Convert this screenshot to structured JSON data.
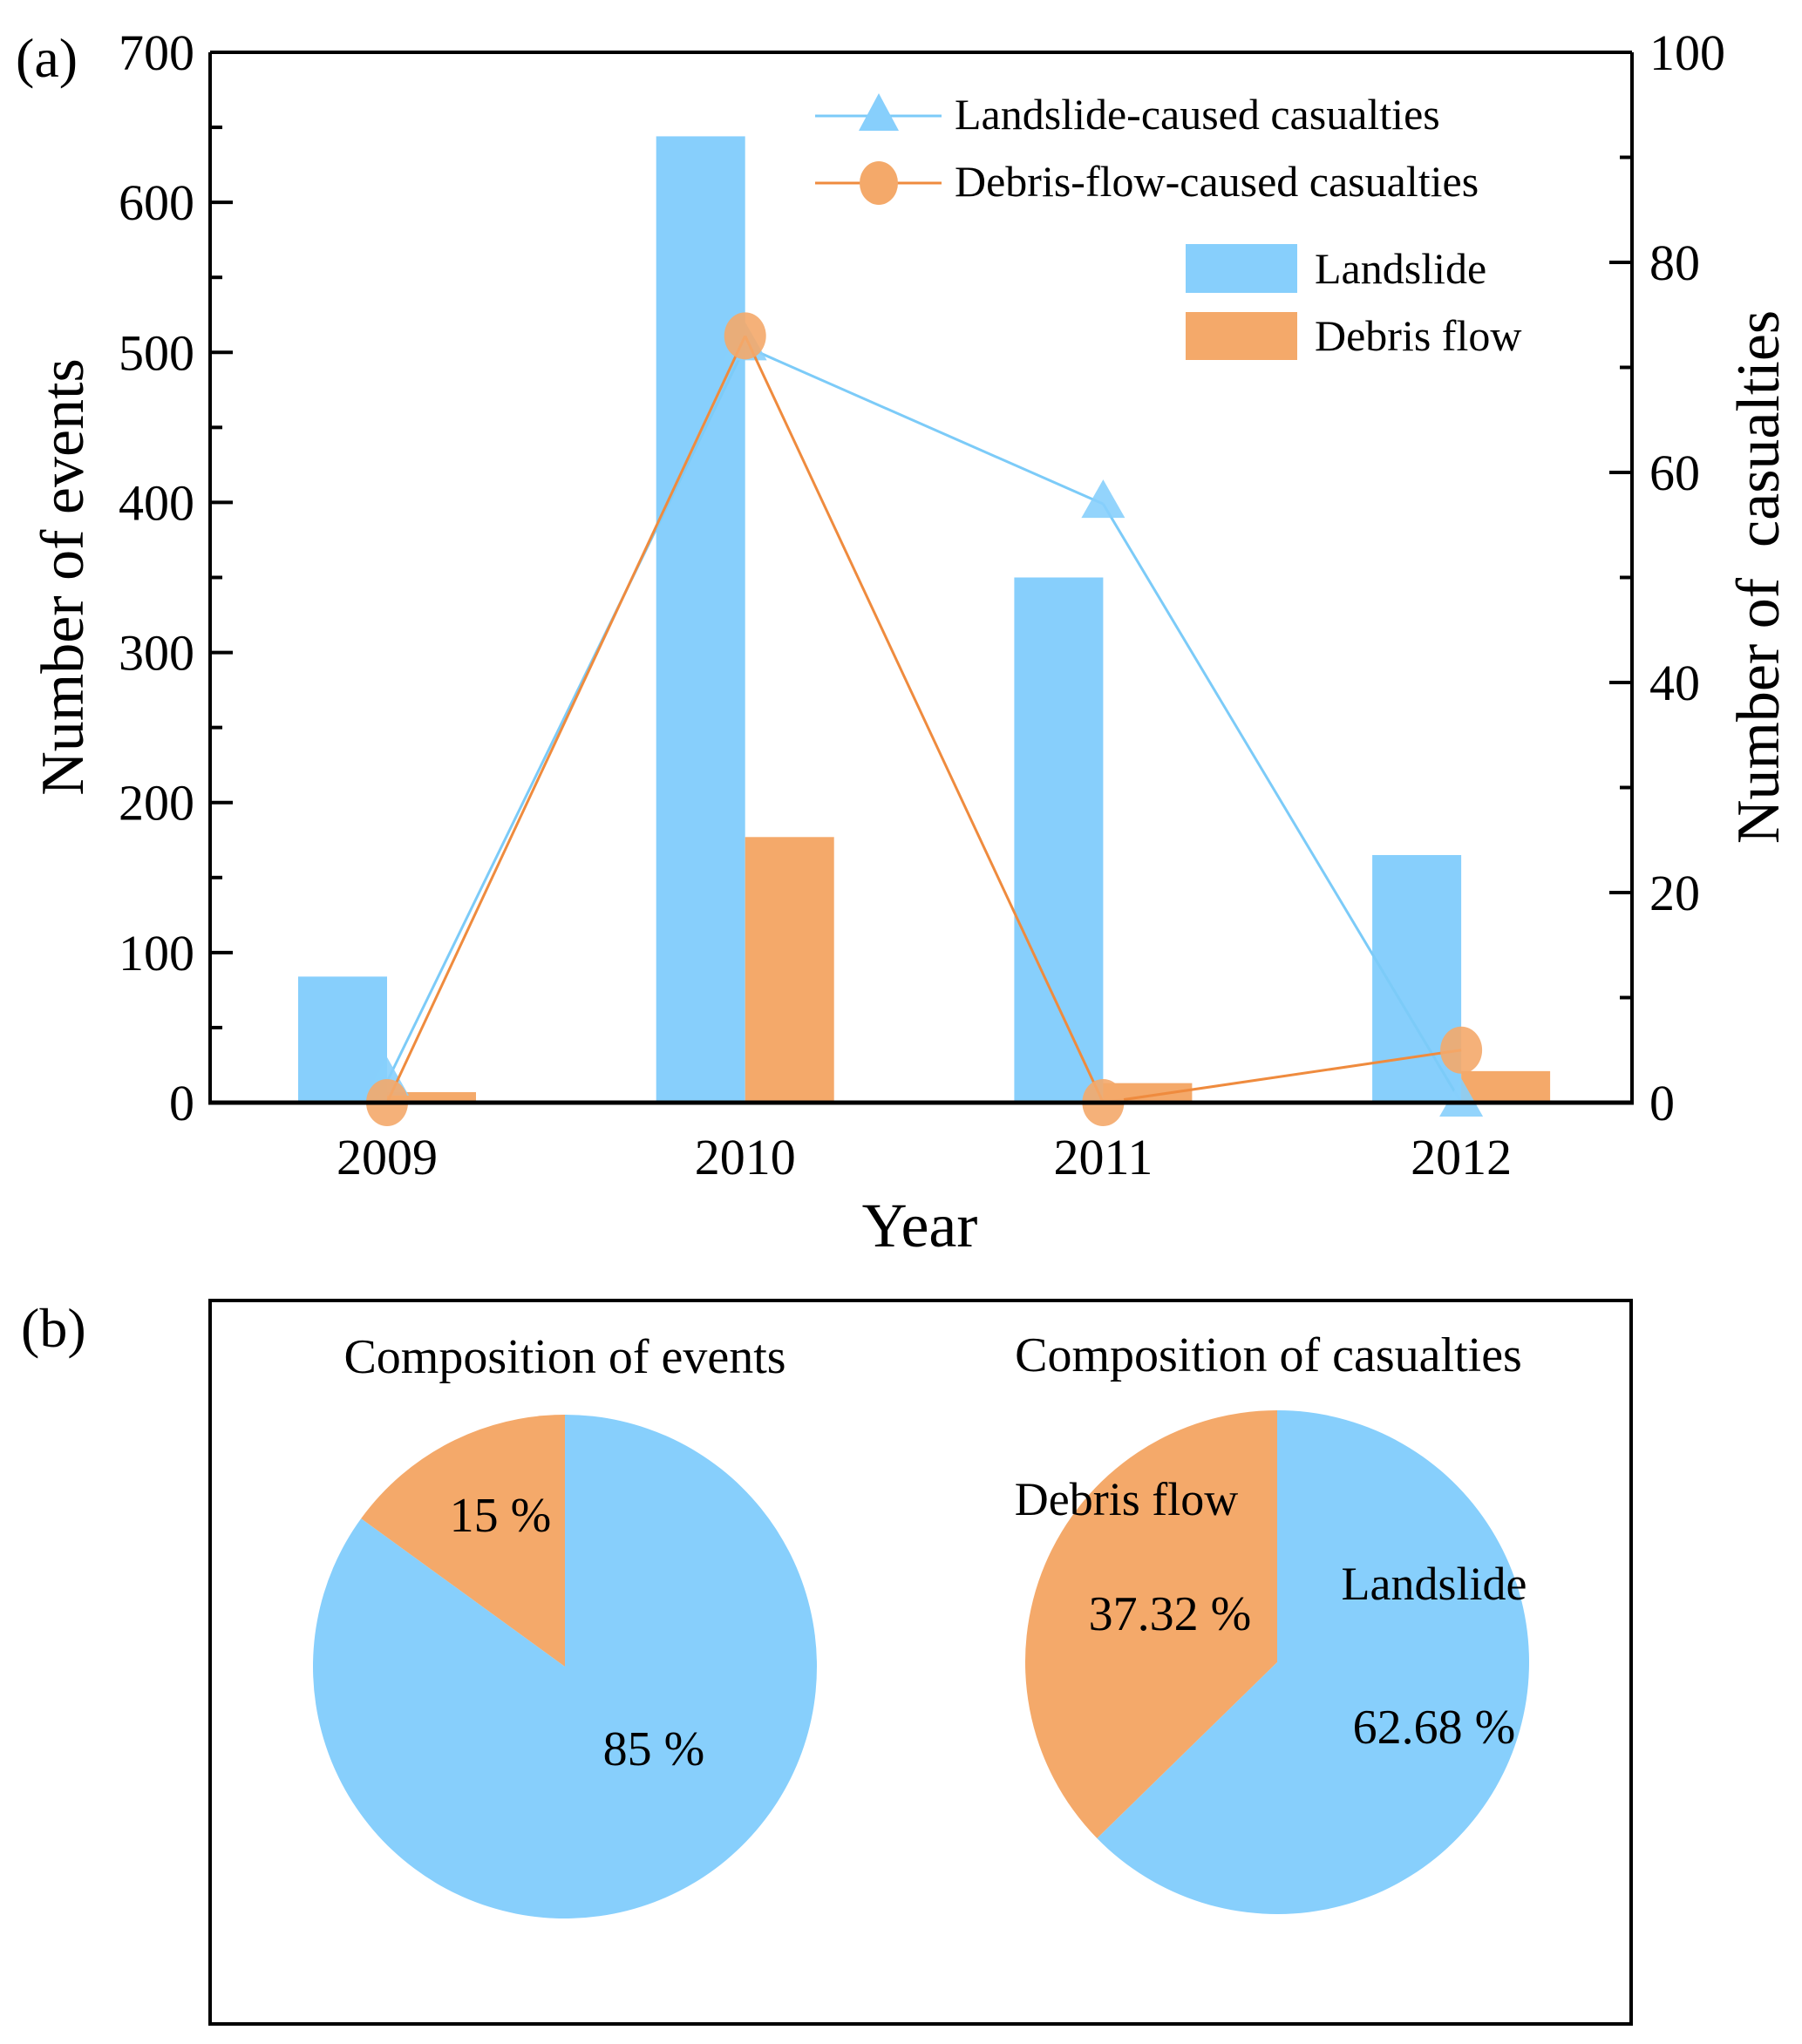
{
  "panel_a_label": "(a)",
  "panel_b_label": "(b)",
  "colors": {
    "landslide": "#87CFFC",
    "debris": "#F4A96A",
    "landslide_line": "#7CCBF8",
    "debris_line": "#EF8B3E",
    "axis": "#000000"
  },
  "chart_data": [
    {
      "type": "bar",
      "combo": "bar+line (dual axis)",
      "title": "",
      "xlabel": "Year",
      "ylabel": "Number of events",
      "y2label": "Number of  casualties",
      "categories": [
        "2009",
        "2010",
        "2011",
        "2012"
      ],
      "ylim": [
        0,
        700
      ],
      "y2lim": [
        0,
        100
      ],
      "yticks": [
        "0",
        "100",
        "200",
        "300",
        "400",
        "500",
        "600",
        "700"
      ],
      "y2ticks": [
        "0",
        "20",
        "40",
        "60",
        "80",
        "100"
      ],
      "series": [
        {
          "name": "Landslide",
          "kind": "bar",
          "axis": "left",
          "values": [
            84,
            644,
            350,
            165
          ]
        },
        {
          "name": "Debris flow",
          "kind": "bar",
          "axis": "left",
          "values": [
            7,
            177,
            13,
            21
          ]
        },
        {
          "name": "Landslide-caused casualties",
          "kind": "line",
          "marker": "triangle",
          "axis": "right",
          "values": [
            2,
            72,
            57,
            0
          ]
        },
        {
          "name": "Debris-flow-caused casualties",
          "kind": "line",
          "marker": "circle",
          "axis": "right",
          "values": [
            0,
            73,
            0,
            5
          ]
        }
      ],
      "legend": {
        "placement": "top-right",
        "line_entries": [
          "Landslide-caused casualties",
          "Debris-flow-caused casualties"
        ],
        "bar_entries": [
          "Landslide",
          "Debris flow"
        ]
      },
      "grid": false
    },
    {
      "type": "pie",
      "title": "Composition of events",
      "slices": [
        {
          "name": "Landslide",
          "value": 85,
          "label": "85 %"
        },
        {
          "name": "Debris flow",
          "value": 15,
          "label": "15 %"
        }
      ]
    },
    {
      "type": "pie",
      "title": "Composition of casualties",
      "slices": [
        {
          "name": "Landslide",
          "value": 62.68,
          "label": "62.68 %",
          "category_label": "Landslide"
        },
        {
          "name": "Debris flow",
          "value": 37.32,
          "label": "37.32 %",
          "category_label": "Debris flow"
        }
      ]
    }
  ]
}
